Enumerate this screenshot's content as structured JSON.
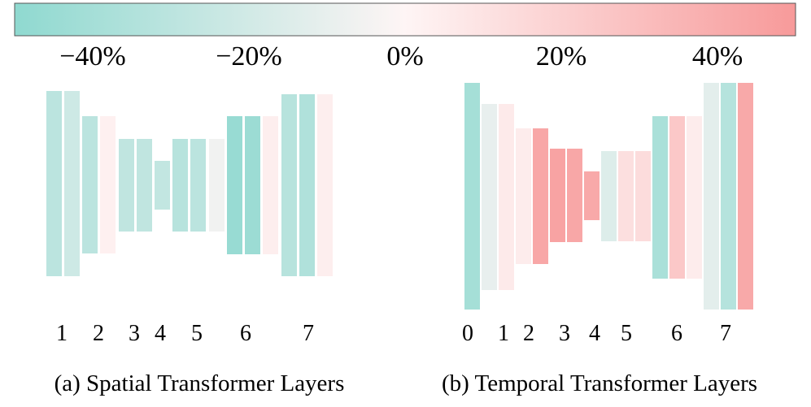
{
  "colors": {
    "negative": "#8fd9d0",
    "neutral": "#fef5f5",
    "positive": "#f79a9a"
  },
  "colorbar": {
    "range": [
      -50,
      50
    ],
    "ticks": [
      {
        "value": -40,
        "label": "−40%"
      },
      {
        "value": -20,
        "label": "−20%"
      },
      {
        "value": 0,
        "label": "0%"
      },
      {
        "value": 20,
        "label": "20%"
      },
      {
        "value": 40,
        "label": "40%"
      }
    ]
  },
  "chart_data": [
    {
      "type": "bar",
      "caption": "(a) Spatial Transformer Layers",
      "layer_labels": [
        "1",
        "2",
        "3",
        "4",
        "5",
        "6",
        "7"
      ],
      "bars": [
        {
          "layer": "1",
          "value": -30
        },
        {
          "layer": "1",
          "value": -22
        },
        {
          "layer": "2",
          "value": -30
        },
        {
          "layer": "2",
          "value": 3
        },
        {
          "layer": "3",
          "value": -28
        },
        {
          "layer": "3",
          "value": -28
        },
        {
          "layer": "4",
          "value": -27
        },
        {
          "layer": "5",
          "value": -32
        },
        {
          "layer": "5",
          "value": -30
        },
        {
          "layer": "5",
          "value": -6
        },
        {
          "layer": "6",
          "value": -46
        },
        {
          "layer": "6",
          "value": -44
        },
        {
          "layer": "6",
          "value": 4
        },
        {
          "layer": "7",
          "value": -32
        },
        {
          "layer": "7",
          "value": -35
        },
        {
          "layer": "7",
          "value": 4
        }
      ]
    },
    {
      "type": "bar",
      "caption": "(b) Temporal Transformer Layers",
      "layer_labels": [
        "0",
        "1",
        "2",
        "3",
        "4",
        "5",
        "6",
        "7"
      ],
      "bars": [
        {
          "layer": "0",
          "value": -40
        },
        {
          "layer": "1",
          "value": -10
        },
        {
          "layer": "1",
          "value": 6
        },
        {
          "layer": "2",
          "value": 5
        },
        {
          "layer": "2",
          "value": 43
        },
        {
          "layer": "3",
          "value": 45
        },
        {
          "layer": "3",
          "value": 43
        },
        {
          "layer": "4",
          "value": 42
        },
        {
          "layer": "5",
          "value": -15
        },
        {
          "layer": "5",
          "value": 12
        },
        {
          "layer": "5",
          "value": 14
        },
        {
          "layer": "6",
          "value": -38
        },
        {
          "layer": "6",
          "value": 25
        },
        {
          "layer": "6",
          "value": 5
        },
        {
          "layer": "7",
          "value": -12
        },
        {
          "layer": "7",
          "value": -33
        },
        {
          "layer": "7",
          "value": 42
        }
      ]
    }
  ]
}
